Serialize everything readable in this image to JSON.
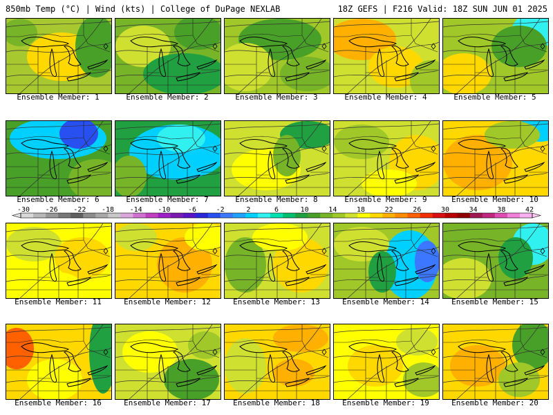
{
  "header": {
    "left": "850mb Temp (°C) | Wind (kts) | College of DuPage NEXLAB",
    "right": "18Z GEFS | F216 Valid: 18Z SUN JUN 01 2025"
  },
  "colorbar": {
    "ticks": [
      "-30",
      "-26",
      "-22",
      "-18",
      "-14",
      "-10",
      "-6",
      "-2",
      "2",
      "6",
      "10",
      "14",
      "18",
      "22",
      "26",
      "30",
      "34",
      "38",
      "42"
    ],
    "colors": [
      "#d8d8d8",
      "#b8b8b8",
      "#989898",
      "#787878",
      "#606060",
      "#8c8c8c",
      "#a8a8a8",
      "#c8c8c8",
      "#dca8dc",
      "#d070d0",
      "#c040c0",
      "#a020c8",
      "#7a1ab0",
      "#5a14c8",
      "#2828d8",
      "#2850f0",
      "#3c78ff",
      "#20a0ff",
      "#00d0ff",
      "#30f0f0",
      "#00e0b0",
      "#00c070",
      "#20a040",
      "#48a028",
      "#78b428",
      "#a0c828",
      "#d0e030",
      "#ffff00",
      "#ffd800",
      "#ffb000",
      "#ff8c00",
      "#ff6000",
      "#f03000",
      "#d81010",
      "#b80000",
      "#900000",
      "#a01850",
      "#c02880",
      "#e04cb4",
      "#f080d8",
      "#f8b0f0"
    ]
  },
  "members": [
    {
      "label": "Ensemble Member: 1",
      "bg": "#a8c830",
      "blobs": [
        {
          "cx": 80,
          "cy": 55,
          "rx": 50,
          "ry": 35,
          "c": "#ffd800"
        },
        {
          "cx": 130,
          "cy": 40,
          "rx": 30,
          "ry": 45,
          "c": "#48a028"
        },
        {
          "cx": 20,
          "cy": 20,
          "rx": 25,
          "ry": 20,
          "c": "#78b428"
        }
      ]
    },
    {
      "label": "Ensemble Member: 2",
      "bg": "#78b428",
      "blobs": [
        {
          "cx": 40,
          "cy": 40,
          "rx": 40,
          "ry": 30,
          "c": "#d0e030"
        },
        {
          "cx": 100,
          "cy": 80,
          "rx": 60,
          "ry": 30,
          "c": "#20a040"
        },
        {
          "cx": 120,
          "cy": 20,
          "rx": 35,
          "ry": 25,
          "c": "#48a028"
        }
      ]
    },
    {
      "label": "Ensemble Member: 3",
      "bg": "#a0c828",
      "blobs": [
        {
          "cx": 80,
          "cy": 30,
          "rx": 60,
          "ry": 30,
          "c": "#48a028"
        },
        {
          "cx": 30,
          "cy": 70,
          "rx": 40,
          "ry": 35,
          "c": "#d0e030"
        },
        {
          "cx": 120,
          "cy": 80,
          "rx": 40,
          "ry": 25,
          "c": "#78b428"
        }
      ]
    },
    {
      "label": "Ensemble Member: 4",
      "bg": "#d0e030",
      "blobs": [
        {
          "cx": 40,
          "cy": 30,
          "rx": 50,
          "ry": 30,
          "c": "#ffb000"
        },
        {
          "cx": 90,
          "cy": 70,
          "rx": 40,
          "ry": 30,
          "c": "#ffd800"
        },
        {
          "cx": 140,
          "cy": 90,
          "rx": 30,
          "ry": 30,
          "c": "#a0c828"
        }
      ]
    },
    {
      "label": "Ensemble Member: 5",
      "bg": "#a0c828",
      "blobs": [
        {
          "cx": 140,
          "cy": 15,
          "rx": 40,
          "ry": 25,
          "c": "#30f0f0"
        },
        {
          "cx": 110,
          "cy": 40,
          "rx": 40,
          "ry": 30,
          "c": "#48a028"
        },
        {
          "cx": 30,
          "cy": 80,
          "rx": 40,
          "ry": 30,
          "c": "#ffd800"
        }
      ]
    },
    {
      "label": "Ensemble Member: 6",
      "bg": "#48a028",
      "blobs": [
        {
          "cx": 75,
          "cy": 25,
          "rx": 70,
          "ry": 30,
          "c": "#00d0ff"
        },
        {
          "cx": 105,
          "cy": 18,
          "rx": 28,
          "ry": 22,
          "c": "#2850f0"
        },
        {
          "cx": 130,
          "cy": 85,
          "rx": 40,
          "ry": 30,
          "c": "#78b428"
        }
      ]
    },
    {
      "label": "Ensemble Member: 7",
      "bg": "#20a040",
      "blobs": [
        {
          "cx": 90,
          "cy": 45,
          "rx": 70,
          "ry": 40,
          "c": "#00d0ff"
        },
        {
          "cx": 95,
          "cy": 25,
          "rx": 35,
          "ry": 20,
          "c": "#30f0f0"
        },
        {
          "cx": 20,
          "cy": 80,
          "rx": 25,
          "ry": 30,
          "c": "#78b428"
        }
      ]
    },
    {
      "label": "Ensemble Member: 8",
      "bg": "#d0e030",
      "blobs": [
        {
          "cx": 120,
          "cy": 20,
          "rx": 40,
          "ry": 20,
          "c": "#20a040"
        },
        {
          "cx": 60,
          "cy": 70,
          "rx": 50,
          "ry": 30,
          "c": "#ffff00"
        },
        {
          "cx": 90,
          "cy": 50,
          "rx": 20,
          "ry": 30,
          "c": "#78b428"
        }
      ]
    },
    {
      "label": "Ensemble Member: 9",
      "bg": "#d0e030",
      "blobs": [
        {
          "cx": 40,
          "cy": 30,
          "rx": 40,
          "ry": 25,
          "c": "#a0c828"
        },
        {
          "cx": 120,
          "cy": 60,
          "rx": 40,
          "ry": 40,
          "c": "#ffd800"
        },
        {
          "cx": 80,
          "cy": 90,
          "rx": 40,
          "ry": 20,
          "c": "#ffff00"
        }
      ]
    },
    {
      "label": "Ensemble Member: 10",
      "bg": "#ffd800",
      "blobs": [
        {
          "cx": 140,
          "cy": 10,
          "rx": 30,
          "ry": 20,
          "c": "#00d0ff"
        },
        {
          "cx": 50,
          "cy": 60,
          "rx": 50,
          "ry": 40,
          "c": "#ffb000"
        },
        {
          "cx": 100,
          "cy": 20,
          "rx": 40,
          "ry": 20,
          "c": "#a0c828"
        }
      ]
    },
    {
      "label": "Ensemble Member: 11",
      "bg": "#ffff00",
      "blobs": [
        {
          "cx": 40,
          "cy": 30,
          "rx": 40,
          "ry": 25,
          "c": "#d0e030"
        },
        {
          "cx": 110,
          "cy": 50,
          "rx": 40,
          "ry": 30,
          "c": "#ffd800"
        },
        {
          "cx": 70,
          "cy": 90,
          "rx": 40,
          "ry": 20,
          "c": "#ffff00"
        }
      ]
    },
    {
      "label": "Ensemble Member: 12",
      "bg": "#ffd800",
      "blobs": [
        {
          "cx": 30,
          "cy": 20,
          "rx": 30,
          "ry": 20,
          "c": "#d0e030"
        },
        {
          "cx": 100,
          "cy": 60,
          "rx": 40,
          "ry": 40,
          "c": "#ffb000"
        },
        {
          "cx": 130,
          "cy": 20,
          "rx": 30,
          "ry": 20,
          "c": "#ffff00"
        }
      ]
    },
    {
      "label": "Ensemble Member: 13",
      "bg": "#d0e030",
      "blobs": [
        {
          "cx": 30,
          "cy": 60,
          "rx": 30,
          "ry": 40,
          "c": "#78b428"
        },
        {
          "cx": 110,
          "cy": 60,
          "rx": 40,
          "ry": 40,
          "c": "#ffd800"
        },
        {
          "cx": 80,
          "cy": 20,
          "rx": 40,
          "ry": 20,
          "c": "#ffff00"
        }
      ]
    },
    {
      "label": "Ensemble Member: 14",
      "bg": "#a0c828",
      "blobs": [
        {
          "cx": 110,
          "cy": 60,
          "rx": 40,
          "ry": 50,
          "c": "#00d0ff"
        },
        {
          "cx": 135,
          "cy": 55,
          "rx": 18,
          "ry": 30,
          "c": "#3c78ff"
        },
        {
          "cx": 40,
          "cy": 30,
          "rx": 40,
          "ry": 25,
          "c": "#d0e030"
        },
        {
          "cx": 70,
          "cy": 70,
          "rx": 20,
          "ry": 30,
          "c": "#20a040"
        }
      ]
    },
    {
      "label": "Ensemble Member: 15",
      "bg": "#78b428",
      "blobs": [
        {
          "cx": 130,
          "cy": 30,
          "rx": 30,
          "ry": 30,
          "c": "#30f0f0"
        },
        {
          "cx": 105,
          "cy": 50,
          "rx": 25,
          "ry": 30,
          "c": "#20a040"
        },
        {
          "cx": 30,
          "cy": 80,
          "rx": 40,
          "ry": 30,
          "c": "#d0e030"
        }
      ]
    },
    {
      "label": "Ensemble Member: 16",
      "bg": "#ffd800",
      "blobs": [
        {
          "cx": 15,
          "cy": 35,
          "rx": 25,
          "ry": 30,
          "c": "#ff6000"
        },
        {
          "cx": 140,
          "cy": 40,
          "rx": 20,
          "ry": 60,
          "c": "#20a040"
        },
        {
          "cx": 70,
          "cy": 80,
          "rx": 40,
          "ry": 30,
          "c": "#ffff00"
        }
      ]
    },
    {
      "label": "Ensemble Member: 17",
      "bg": "#d0e030",
      "blobs": [
        {
          "cx": 50,
          "cy": 40,
          "rx": 40,
          "ry": 30,
          "c": "#ffff00"
        },
        {
          "cx": 110,
          "cy": 80,
          "rx": 40,
          "ry": 30,
          "c": "#48a028"
        },
        {
          "cx": 130,
          "cy": 30,
          "rx": 25,
          "ry": 20,
          "c": "#a0c828"
        }
      ]
    },
    {
      "label": "Ensemble Member: 18",
      "bg": "#ffd800",
      "blobs": [
        {
          "cx": 110,
          "cy": 20,
          "rx": 40,
          "ry": 20,
          "c": "#ffb000"
        },
        {
          "cx": 30,
          "cy": 60,
          "rx": 30,
          "ry": 40,
          "c": "#d0e030"
        },
        {
          "cx": 100,
          "cy": 70,
          "rx": 30,
          "ry": 20,
          "c": "#ffb000"
        }
      ]
    },
    {
      "label": "Ensemble Member: 19",
      "bg": "#ffff00",
      "blobs": [
        {
          "cx": 120,
          "cy": 25,
          "rx": 30,
          "ry": 20,
          "c": "#d0e030"
        },
        {
          "cx": 60,
          "cy": 60,
          "rx": 40,
          "ry": 30,
          "c": "#ffd800"
        },
        {
          "cx": 130,
          "cy": 80,
          "rx": 30,
          "ry": 25,
          "c": "#a0c828"
        }
      ]
    },
    {
      "label": "Ensemble Member: 20",
      "bg": "#ffd800",
      "blobs": [
        {
          "cx": 130,
          "cy": 30,
          "rx": 30,
          "ry": 35,
          "c": "#48a028"
        },
        {
          "cx": 50,
          "cy": 60,
          "rx": 40,
          "ry": 30,
          "c": "#ffb000"
        },
        {
          "cx": 110,
          "cy": 80,
          "rx": 30,
          "ry": 25,
          "c": "#a0c828"
        }
      ]
    }
  ]
}
